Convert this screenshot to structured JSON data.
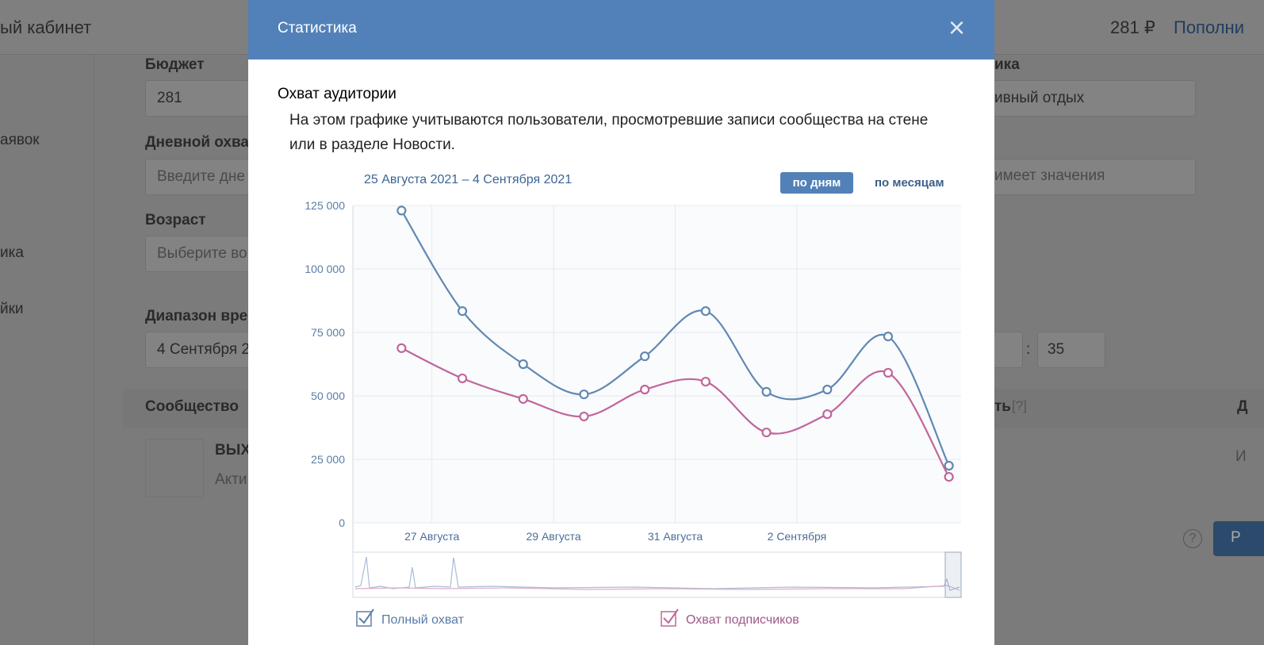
{
  "background": {
    "cabinet": "ый кабинет",
    "balance": "281 ₽",
    "topup": "Пополни",
    "budget_label": "Бюджет",
    "budget_value": "281",
    "menu": [
      "аявок",
      "ика",
      "йки"
    ],
    "daily_label": "Дневной охва",
    "daily_placeholder": "Введите дне",
    "age_label": "Возраст",
    "age_placeholder": "Выберите во",
    "range_label": "Диапазон вре",
    "range_value": "4 Сентября 2",
    "community_label": "Сообщество",
    "community_name": "ВЫХ",
    "community_sub": "Акти",
    "right_label": "ика",
    "right_select": "ивный отдых",
    "right_select2": "имеет значения",
    "minutes": "35",
    "colon": ":",
    "right_hint": "ть",
    "hint": "[?]",
    "far_right": "Д",
    "far_right2": "И",
    "button": "Р",
    "question": "?"
  },
  "modal": {
    "title": "Статистика",
    "close": "×",
    "heading": "Охват аудитории",
    "description": "На этом графике учитываются пользователи, просмотревшие записи сообщества на стене или в разделе Новости.",
    "period": "25 Августа 2021 – 4 Сентября 2021",
    "by_days": "по дням",
    "by_months": "по месяцам",
    "chart": {
      "type": "line",
      "x": [
        0.8,
        1.8,
        2.8,
        3.8,
        4.8,
        5.8,
        6.8,
        7.8,
        8.8,
        9.8
      ],
      "xlim": [
        0,
        10
      ],
      "xticks": [
        {
          "value": 1.3,
          "label": "27 Августа"
        },
        {
          "value": 3.3,
          "label": "29 Августа"
        },
        {
          "value": 5.3,
          "label": "31 Августа"
        },
        {
          "value": 7.3,
          "label": "2 Сентября"
        }
      ],
      "ylim": [
        0,
        125000
      ],
      "yticks": [
        {
          "value": 0,
          "label": "0"
        },
        {
          "value": 25000,
          "label": "25 000"
        },
        {
          "value": 50000,
          "label": "50 000"
        },
        {
          "value": 75000,
          "label": "75 000"
        },
        {
          "value": 100000,
          "label": "100 000"
        },
        {
          "value": 125000,
          "label": "125 000"
        }
      ],
      "grid": true,
      "series": [
        {
          "name": "Полный охват",
          "color": "#6088b3",
          "values": [
            123000,
            83400,
            62500,
            50600,
            65600,
            83400,
            51600,
            52500,
            73400,
            22500
          ]
        },
        {
          "name": "Охват подписчиков",
          "color": "#c0669c",
          "values": [
            68800,
            56900,
            48800,
            41900,
            52500,
            55600,
            35600,
            42800,
            59100,
            18100
          ]
        }
      ]
    }
  }
}
